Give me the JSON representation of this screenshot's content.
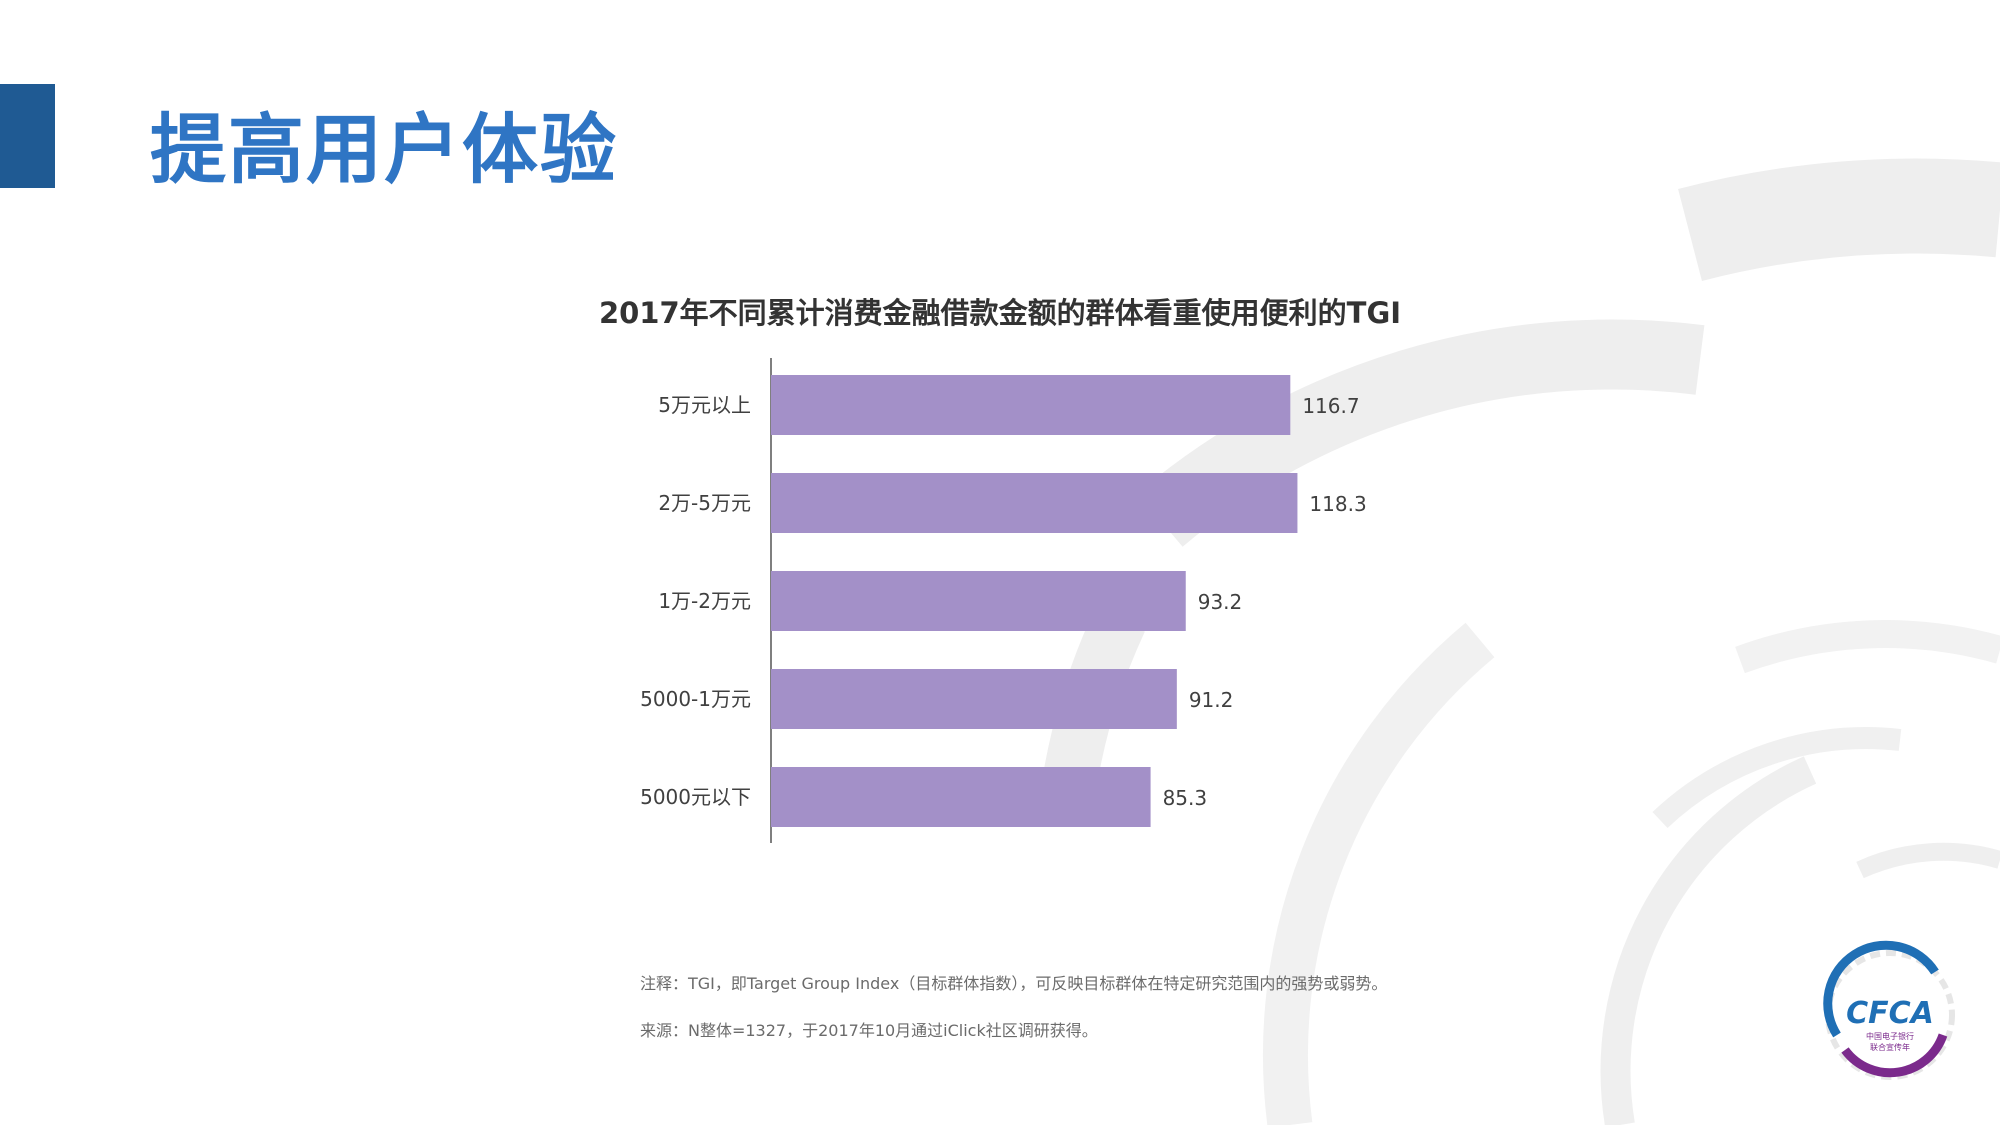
{
  "page": {
    "title": "提高用户体验"
  },
  "chart_data": {
    "type": "bar",
    "orientation": "horizontal",
    "title": "2017年不同累计消费金融借款金额的群体看重使用便利的TGI",
    "categories": [
      "5万元以上",
      "2万-5万元",
      "1万-2万元",
      "5000-1万元",
      "5000元以下"
    ],
    "values": [
      116.7,
      118.3,
      93.2,
      91.2,
      85.3
    ],
    "value_labels": [
      "116.7",
      "118.3",
      "93.2",
      "91.2",
      "85.3"
    ],
    "xlim": [
      0,
      130
    ],
    "xlabel": "",
    "ylabel": "",
    "grid": false,
    "bar_color": "#a390c8"
  },
  "notes": {
    "note": "注释：TGI，即Target Group Index（目标群体指数），可反映目标群体在特定研究范围内的强势或弱势。",
    "source": "来源：N整体=1327，于2017年10月通过iClick社区调研获得。"
  },
  "logo": {
    "text": "CFCA",
    "subtext_1": "中国电子银行",
    "subtext_2": "联合宣传年"
  },
  "colors": {
    "title": "#2f75c4",
    "accent": "#1f5a93",
    "bar": "#a390c8",
    "logo_blue": "#1f6fb5",
    "logo_purple": "#7b2a8c"
  }
}
